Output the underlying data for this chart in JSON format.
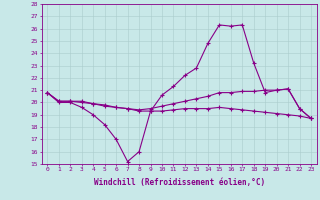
{
  "xlabel": "Windchill (Refroidissement éolien,°C)",
  "background_color": "#c8e8e8",
  "line_color": "#880088",
  "x": [
    0,
    1,
    2,
    3,
    4,
    5,
    6,
    7,
    8,
    9,
    10,
    11,
    12,
    13,
    14,
    15,
    16,
    17,
    18,
    19,
    20,
    21,
    22,
    23
  ],
  "line1": [
    20.8,
    20.0,
    20.0,
    19.6,
    19.0,
    18.2,
    17.0,
    15.2,
    16.0,
    19.3,
    20.6,
    21.3,
    22.2,
    22.8,
    24.8,
    26.3,
    26.2,
    26.3,
    23.2,
    20.8,
    21.0,
    21.1,
    19.5,
    18.7
  ],
  "line2": [
    20.8,
    20.1,
    20.1,
    20.1,
    19.9,
    19.8,
    19.6,
    19.5,
    19.4,
    19.5,
    19.7,
    19.9,
    20.1,
    20.3,
    20.5,
    20.8,
    20.8,
    20.9,
    20.9,
    21.0,
    21.0,
    21.1,
    19.5,
    18.7
  ],
  "line3": [
    20.8,
    20.1,
    20.1,
    20.0,
    19.9,
    19.7,
    19.6,
    19.5,
    19.3,
    19.3,
    19.3,
    19.4,
    19.5,
    19.5,
    19.5,
    19.6,
    19.5,
    19.4,
    19.3,
    19.2,
    19.1,
    19.0,
    18.9,
    18.7
  ],
  "ylim": [
    15,
    28
  ],
  "yticks": [
    15,
    16,
    17,
    18,
    19,
    20,
    21,
    22,
    23,
    24,
    25,
    26,
    27,
    28
  ],
  "xticks": [
    0,
    1,
    2,
    3,
    4,
    5,
    6,
    7,
    8,
    9,
    10,
    11,
    12,
    13,
    14,
    15,
    16,
    17,
    18,
    19,
    20,
    21,
    22,
    23
  ],
  "grid_color": "#aacccc",
  "marker": "+",
  "markersize": 3.5,
  "linewidth": 0.8,
  "tick_fontsize": 4.5,
  "xlabel_fontsize": 5.5
}
